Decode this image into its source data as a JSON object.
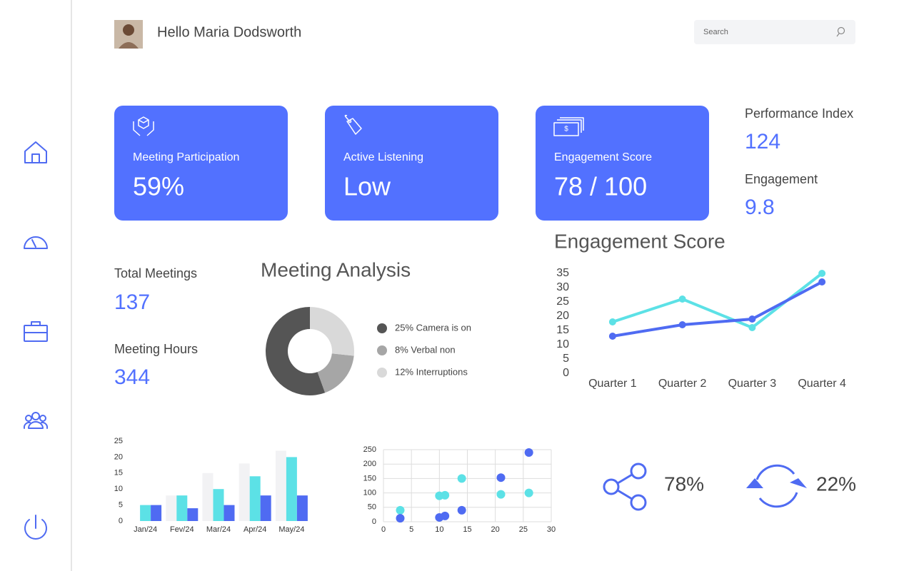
{
  "header": {
    "greeting": "Hello Maria Dodsworth",
    "search_placeholder": "Search"
  },
  "cards": [
    {
      "title": "Meeting Participation",
      "value": "59%"
    },
    {
      "title": "Active Listening",
      "value": "Low"
    },
    {
      "title": "Engagement Score",
      "value": "78 / 100"
    }
  ],
  "stats": [
    {
      "label": "Performance Index",
      "value": 124
    },
    {
      "label": "Engagement",
      "value": 9.8
    },
    {
      "label": "Total Meetings",
      "value": 137
    },
    {
      "label": "Meeting Hours",
      "value": 344
    }
  ],
  "donut_chart": {
    "type": "pie",
    "donut": true,
    "title": "Meeting Analysis",
    "labels": [
      "25% Camera is on",
      "8% Verbal non",
      "12% Interruptions"
    ],
    "values": [
      25,
      8,
      12
    ],
    "colors": [
      "#555555",
      "#a6a6a6",
      "#d9d9d9"
    ]
  },
  "line_chart": {
    "type": "line",
    "title": "Engagement Score",
    "categories": [
      "Quarter 1",
      "Quarter 2",
      "Quarter 3",
      "Quarter 4"
    ],
    "series": [
      {
        "color": "#5ce1e6",
        "values": [
          18,
          26,
          16,
          35
        ]
      },
      {
        "color": "#4f6bf2",
        "values": [
          13,
          17,
          19,
          32
        ]
      }
    ],
    "ylim": [
      0,
      35
    ],
    "yticks": [
      0,
      5,
      10,
      15,
      20,
      25,
      30,
      35
    ]
  },
  "bar_chart": {
    "type": "bar",
    "categories": [
      "Jan/24",
      "Fev/24",
      "Mar/24",
      "Apr/24",
      "May/24"
    ],
    "series": [
      {
        "color": "#f2f2f4",
        "values": [
          0,
          8,
          15,
          18,
          22
        ]
      },
      {
        "color": "#5ce1e6",
        "values": [
          5,
          8,
          10,
          14,
          20
        ]
      },
      {
        "color": "#4f6bf2",
        "values": [
          5,
          4,
          5,
          8,
          8
        ]
      }
    ],
    "ylim": [
      0,
      25
    ],
    "yticks": [
      0,
      5,
      10,
      15,
      20,
      25
    ]
  },
  "scatter_chart": {
    "type": "scatter",
    "grid": true,
    "xlim": [
      0,
      30
    ],
    "xticks": [
      0,
      5,
      10,
      15,
      20,
      25,
      30
    ],
    "ylim": [
      0,
      250
    ],
    "yticks": [
      0,
      50,
      100,
      150,
      200,
      250
    ],
    "series": [
      {
        "color": "#5ce1e6",
        "x": [
          3,
          10,
          11,
          14,
          21,
          26
        ],
        "values": [
          40,
          90,
          92,
          150,
          95,
          100
        ]
      },
      {
        "color": "#4f6bf2",
        "x": [
          3,
          10,
          11,
          14,
          21,
          26
        ],
        "values": [
          12,
          15,
          20,
          40,
          153,
          240
        ]
      }
    ]
  },
  "kpis": [
    {
      "value": "78%"
    },
    {
      "value": "22%"
    }
  ]
}
